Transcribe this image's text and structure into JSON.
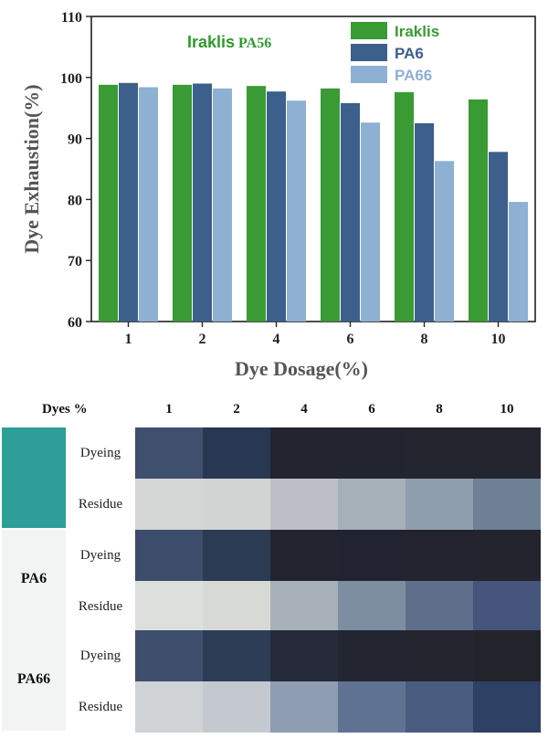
{
  "chart_data": {
    "type": "bar",
    "title": "Iraklis PA56",
    "title_main": "Iraklis",
    "title_sub": "PA56",
    "xlabel": "Dye Dosage(%)",
    "ylabel": "Dye Exhaustion(%)",
    "ylim": [
      60,
      110
    ],
    "yticks": [
      "60",
      "70",
      "80",
      "90",
      "100",
      "110"
    ],
    "categories": [
      "1",
      "2",
      "4",
      "6",
      "8",
      "10"
    ],
    "series": [
      {
        "name": "Iraklis",
        "color": "#3a9a33",
        "values": [
          98.8,
          98.8,
          98.6,
          98.2,
          97.6,
          96.4
        ]
      },
      {
        "name": "PA6",
        "color": "#3d5f8c",
        "values": [
          99.1,
          99.0,
          97.7,
          95.8,
          92.5,
          87.8
        ]
      },
      {
        "name": "PA66",
        "color": "#8eb0d3",
        "values": [
          98.4,
          98.2,
          96.2,
          92.6,
          86.3,
          79.6
        ]
      }
    ],
    "legend_position": "top-right"
  },
  "swatch_table": {
    "header_label": "Dyes %",
    "columns": [
      "1",
      "2",
      "4",
      "6",
      "8",
      "10"
    ],
    "groups": [
      {
        "fiber": "",
        "block_color": "#2e9e98",
        "rows": [
          {
            "label": "Dyeing",
            "colors": [
              "#3f4f6e",
              "#283852",
              "#22242f",
              "#22242f",
              "#23252f",
              "#23252f"
            ]
          },
          {
            "label": "Residue",
            "colors": [
              "#d5d7d6",
              "#d2d4d3",
              "#bcc0c6",
              "#a6b0b9",
              "#8f9eae",
              "#6e8096"
            ]
          }
        ]
      },
      {
        "fiber": "PA6",
        "block_color": "#f2f3f3",
        "rows": [
          {
            "label": "Dyeing",
            "colors": [
              "#3c4d6c",
              "#2b3b54",
              "#22252f",
              "#212330",
              "#22232e",
              "#23242e"
            ]
          },
          {
            "label": "Residue",
            "colors": [
              "#dcdfdb",
              "#d7d9d4",
              "#a8b1b9",
              "#7d8ea1",
              "#5e6f8b",
              "#44547a"
            ]
          }
        ]
      },
      {
        "fiber": "PA66",
        "block_color": "#f2f3f3",
        "rows": [
          {
            "label": "Dyeing",
            "colors": [
              "#3e4f6e",
              "#2d3d56",
              "#262a3a",
              "#232530",
              "#24252f",
              "#22232b"
            ]
          },
          {
            "label": "Residue",
            "colors": [
              "#d0d3d5",
              "#c4c8cf",
              "#8e9db1",
              "#5f7292",
              "#495b7e",
              "#2f4065"
            ]
          }
        ]
      }
    ]
  }
}
